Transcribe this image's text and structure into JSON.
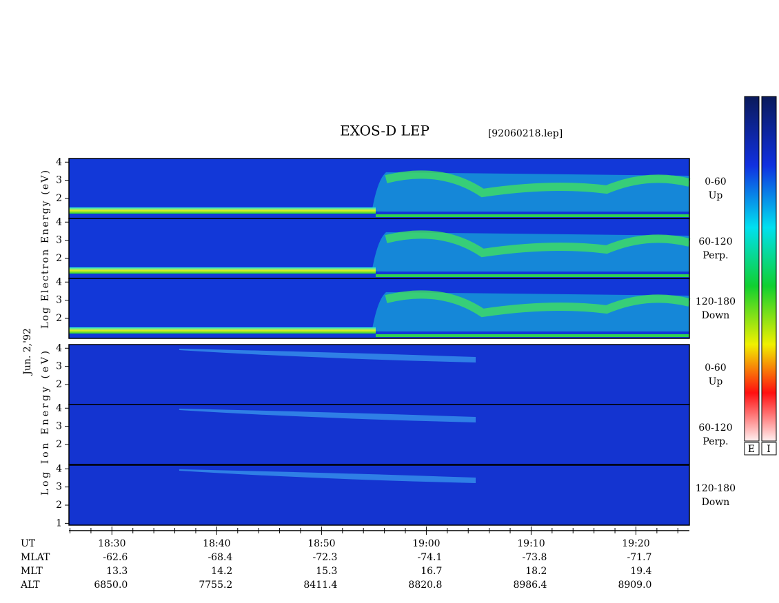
{
  "chart_data": {
    "type": "spectrogram",
    "title": "EXOS-D LEP",
    "file_label": "[92060218.lep]",
    "date_label": "Jun. 2,'92",
    "electron_axis_label": "Log  Electron  Energy (eV)",
    "ion_axis_label": "Log  Ion  Energy (eV)",
    "colorbar_labels": [
      "E",
      "I"
    ],
    "xlim": [
      1105.9,
      1165.1
    ],
    "xticks": [
      {
        "value": 1110,
        "label": "18:30"
      },
      {
        "value": 1120,
        "label": "18:40"
      },
      {
        "value": 1130,
        "label": "18:50"
      },
      {
        "value": 1140,
        "label": "19:00"
      },
      {
        "value": 1150,
        "label": "19:10"
      },
      {
        "value": 1160,
        "label": "19:20"
      }
    ],
    "xminorticks": [
      1106,
      1108,
      1112,
      1114,
      1116,
      1118,
      1122,
      1124,
      1126,
      1128,
      1132,
      1134,
      1136,
      1138,
      1142,
      1144,
      1146,
      1148,
      1152,
      1154,
      1156,
      1158,
      1162,
      1164
    ],
    "panels": [
      {
        "group": "electron",
        "angle": "0-60",
        "direction": "Up",
        "ylim": [
          0.9,
          4.2
        ],
        "yticks": [
          2,
          3,
          4
        ]
      },
      {
        "group": "electron",
        "angle": "60-120",
        "direction": "Perp.",
        "ylim": [
          0.9,
          4.2
        ],
        "yticks": [
          2,
          3,
          4
        ]
      },
      {
        "group": "electron",
        "angle": "120-180",
        "direction": "Down",
        "ylim": [
          0.9,
          4.2
        ],
        "yticks": [
          2,
          3,
          4
        ]
      },
      {
        "group": "ion",
        "angle": "0-60",
        "direction": "Up",
        "ylim": [
          0.9,
          4.2
        ],
        "yticks": [
          2,
          3,
          4
        ]
      },
      {
        "group": "ion",
        "angle": "60-120",
        "direction": "Perp.",
        "ylim": [
          0.9,
          4.2
        ],
        "yticks": [
          2,
          3,
          4
        ]
      },
      {
        "group": "ion",
        "angle": "120-180",
        "direction": "Down",
        "ylim": [
          0.9,
          4.2
        ],
        "yticks": [
          1,
          2,
          3,
          4
        ]
      }
    ],
    "orbit_table": {
      "row_labels": [
        "UT",
        "MLAT",
        "MLT",
        "ALT"
      ],
      "rows": [
        [
          "-62.6",
          "-68.4",
          "-72.3",
          "-74.1",
          "-73.8",
          "-71.7"
        ],
        [
          "13.3",
          "14.2",
          "15.3",
          "16.7",
          "18.2",
          "19.4"
        ],
        [
          "6850.0",
          "7755.2",
          "8411.4",
          "8820.8",
          "8986.4",
          "8909.0"
        ]
      ]
    }
  }
}
